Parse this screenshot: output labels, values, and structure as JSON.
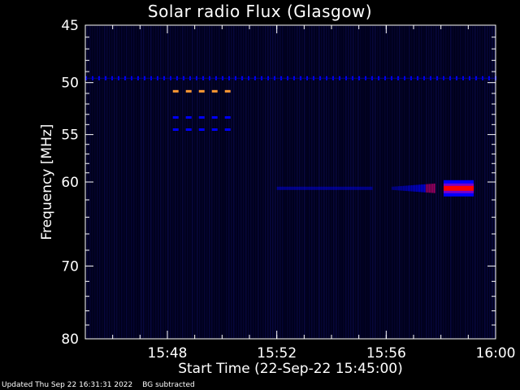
{
  "chart_data": {
    "type": "heatmap",
    "title": "Solar radio Flux (Glasgow)",
    "xlabel": "Start Time (22-Sep-22 15:45:00)",
    "ylabel": "Frequency [MHz]",
    "x_range_minutes_after_start": [
      0,
      15
    ],
    "x_ticks": [
      {
        "label": "15:48",
        "minute": 3
      },
      {
        "label": "15:52",
        "minute": 7
      },
      {
        "label": "15:56",
        "minute": 11
      },
      {
        "label": "16:00",
        "minute": 15
      }
    ],
    "y_range_mhz": [
      45,
      80
    ],
    "y_scale": "log",
    "y_ticks": [
      45,
      50,
      55,
      60,
      70,
      80
    ],
    "colors": {
      "background": "#000000",
      "axes": "#ffffff",
      "low": "#0000ff",
      "mid": "#ff0000",
      "high": "#ff9933"
    },
    "features": [
      {
        "name": "interference-line",
        "freq_mhz": 49.6,
        "minute_start": 0,
        "minute_end": 15,
        "intensity": "low",
        "dashed": true
      },
      {
        "name": "orange-dash-row",
        "freq_mhz": 50.8,
        "minute_start": 3.2,
        "minute_end": 5.5,
        "intensity": "high",
        "dashed": true
      },
      {
        "name": "blue-dash-row-1",
        "freq_mhz": 53.3,
        "minute_start": 3.2,
        "minute_end": 5.5,
        "intensity": "low",
        "dashed": true
      },
      {
        "name": "blue-dash-row-2",
        "freq_mhz": 54.5,
        "minute_start": 3.2,
        "minute_end": 5.5,
        "intensity": "low",
        "dashed": true
      },
      {
        "name": "emission-band-faint",
        "freq_mhz": 60.7,
        "minute_start": 7.0,
        "minute_end": 10.5,
        "intensity": "low",
        "dashed": false
      },
      {
        "name": "emission-band-mid",
        "freq_mhz": 60.7,
        "minute_start": 11.2,
        "minute_end": 12.8,
        "intensity": "mid",
        "dashed": false
      },
      {
        "name": "emission-burst",
        "freq_mhz": 60.7,
        "minute_start": 13.1,
        "minute_end": 14.2,
        "intensity": "mid",
        "dashed": false
      }
    ]
  },
  "footer": {
    "updated": "Updated Thu Sep 22 16:31:31 2022",
    "note": "BG subtracted"
  }
}
